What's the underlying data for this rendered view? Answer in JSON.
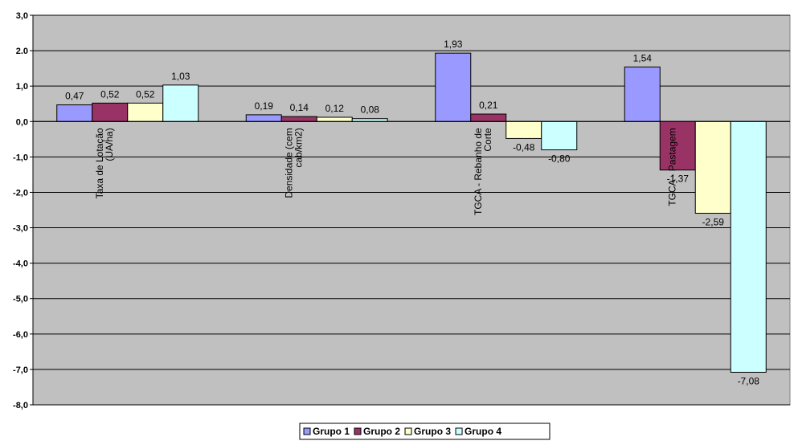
{
  "chart_data": {
    "type": "bar",
    "categories": [
      [
        "Taxa de Lotação",
        "(UA/ha)"
      ],
      [
        "Densidade (cem",
        "cab/km2)"
      ],
      [
        "TGCA - Rebanho de",
        "Corte"
      ],
      [
        "TGCA - Pastagem"
      ]
    ],
    "series": [
      {
        "name": "Grupo 1",
        "values": [
          0.47,
          0.19,
          1.93,
          1.54
        ],
        "labels": [
          "0,47",
          "0,19",
          "1,93",
          "1,54"
        ],
        "color": "#9999FF"
      },
      {
        "name": "Grupo 2",
        "values": [
          0.52,
          0.14,
          0.21,
          -1.37
        ],
        "labels": [
          "0,52",
          "0,14",
          "0,21",
          "-1,37"
        ],
        "color": "#993366"
      },
      {
        "name": "Grupo 3",
        "values": [
          0.52,
          0.12,
          -0.48,
          -2.59
        ],
        "labels": [
          "0,52",
          "0,12",
          "-0,48",
          "-2,59"
        ],
        "color": "#FFFFCC"
      },
      {
        "name": "Grupo 4",
        "values": [
          1.03,
          0.08,
          -0.8,
          -7.08
        ],
        "labels": [
          "1,03",
          "0,08",
          "-0,80",
          "-7,08"
        ],
        "color": "#CCFFFF"
      }
    ],
    "yticks": [
      {
        "value": 3,
        "label": "3,0"
      },
      {
        "value": 2,
        "label": "2.0"
      },
      {
        "value": 1,
        "label": "1,0"
      },
      {
        "value": 0,
        "label": "0,0"
      },
      {
        "value": -1,
        "label": "-1,0"
      },
      {
        "value": -2,
        "label": "-2,0"
      },
      {
        "value": -3,
        "label": "-3,0"
      },
      {
        "value": -4,
        "label": "-4,0"
      },
      {
        "value": -5,
        "label": "-5,0"
      },
      {
        "value": -6,
        "label": "-6,0"
      },
      {
        "value": -7,
        "label": "-7,0"
      },
      {
        "value": -8,
        "label": "-8,0"
      }
    ],
    "ylim": [
      -8,
      3
    ],
    "grid": true,
    "plot_background": "#C0C0C0",
    "legend_position": "bottom"
  }
}
